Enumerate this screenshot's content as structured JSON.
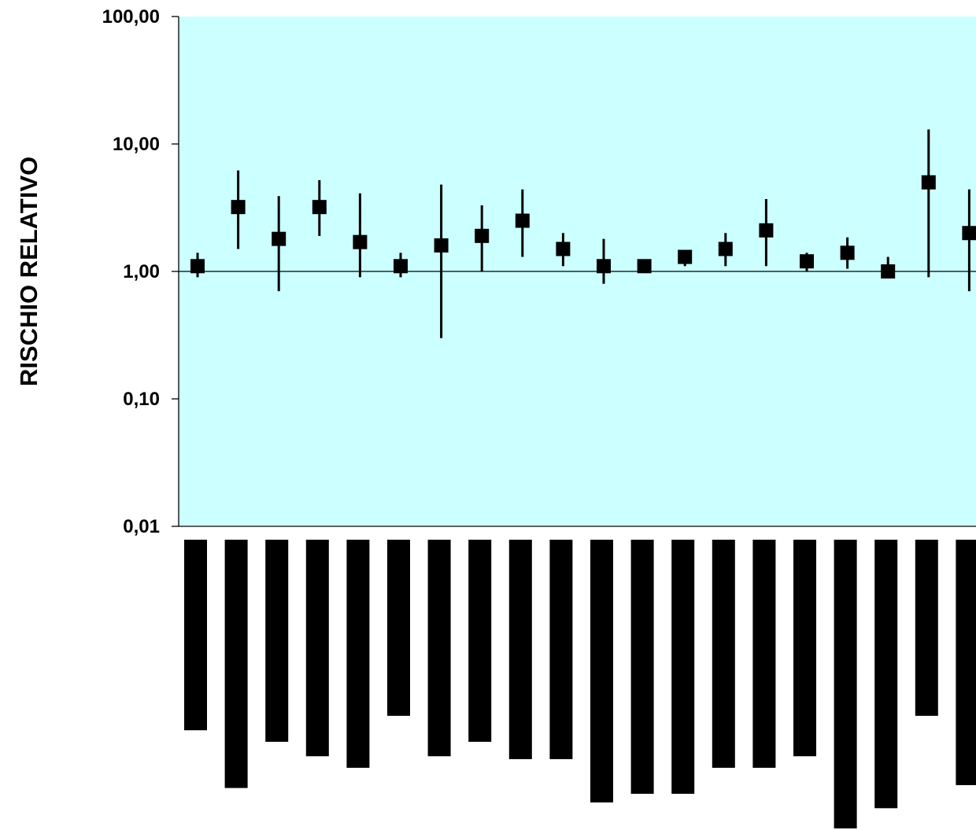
{
  "chart_data": {
    "type": "scatter",
    "subtype": "forest-plot-with-error-bars",
    "title": "",
    "ylabel": "RISCHIO RELATIVO",
    "xlabel": "",
    "yscale": "log",
    "ylim": [
      0.01,
      100
    ],
    "yticks": [
      100,
      10,
      1,
      0.1,
      0.01
    ],
    "ytick_labels": [
      "100,00",
      "10,00",
      "1,00",
      "0,10",
      "0,01"
    ],
    "reference_line": 1.0,
    "grid": false,
    "legend": "none",
    "plot_background": "#ccffff",
    "marker_color": "#000000",
    "marker": "square",
    "series": [
      {
        "estimate": [
          1.1,
          3.2,
          1.8,
          3.2,
          1.7,
          1.1,
          1.6,
          1.9,
          2.5,
          1.5,
          1.1,
          1.1,
          1.3,
          1.5,
          2.1,
          1.2,
          1.4,
          1.0,
          5.0,
          2.0
        ],
        "lower": [
          0.9,
          1.5,
          0.7,
          1.9,
          0.9,
          0.9,
          0.3,
          1.0,
          1.3,
          1.1,
          0.8,
          1.05,
          1.1,
          1.1,
          1.1,
          1.0,
          1.05,
          0.95,
          0.9,
          0.7
        ],
        "upper": [
          1.4,
          6.2,
          3.9,
          5.2,
          4.1,
          1.4,
          4.8,
          3.3,
          4.4,
          2.0,
          1.8,
          1.15,
          1.45,
          2.0,
          3.7,
          1.4,
          1.85,
          1.3,
          13.0,
          4.4
        ]
      }
    ],
    "label_bars": {
      "note": "x-axis category labels rendered as solid black redacted blocks; relative length of each block",
      "relative_length": [
        0.66,
        0.86,
        0.7,
        0.75,
        0.79,
        0.61,
        0.75,
        0.7,
        0.76,
        0.76,
        0.91,
        0.88,
        0.88,
        0.79,
        0.79,
        0.75,
        1.0,
        0.93,
        0.61,
        0.85
      ]
    }
  }
}
